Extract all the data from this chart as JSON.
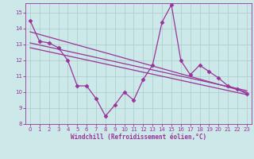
{
  "background_color": "#cce8e8",
  "grid_color": "#aacccc",
  "line_color": "#993399",
  "xlabel": "Windchill (Refroidissement éolien,°C)",
  "xlim": [
    -0.5,
    23.5
  ],
  "ylim": [
    8,
    15.6
  ],
  "yticks": [
    8,
    9,
    10,
    11,
    12,
    13,
    14,
    15
  ],
  "xticks": [
    0,
    1,
    2,
    3,
    4,
    5,
    6,
    7,
    8,
    9,
    10,
    11,
    12,
    13,
    14,
    15,
    16,
    17,
    18,
    19,
    20,
    21,
    22,
    23
  ],
  "series1_x": [
    0,
    1,
    2,
    3,
    4,
    5,
    6,
    7,
    8,
    9,
    10,
    11,
    12,
    13,
    14,
    15,
    16,
    17,
    18,
    19,
    20,
    21,
    22,
    23
  ],
  "series1_y": [
    14.5,
    13.2,
    13.1,
    12.8,
    12.0,
    10.4,
    10.4,
    9.6,
    8.5,
    9.2,
    10.0,
    9.5,
    10.8,
    11.7,
    14.4,
    15.5,
    12.0,
    11.1,
    11.7,
    11.3,
    10.9,
    10.4,
    10.2,
    9.9
  ],
  "series2_x": [
    0,
    23
  ],
  "series2_y": [
    13.8,
    10.0
  ],
  "series3_x": [
    0,
    23
  ],
  "series3_y": [
    13.1,
    10.1
  ],
  "series4_x": [
    0,
    23
  ],
  "series4_y": [
    12.8,
    9.85
  ]
}
